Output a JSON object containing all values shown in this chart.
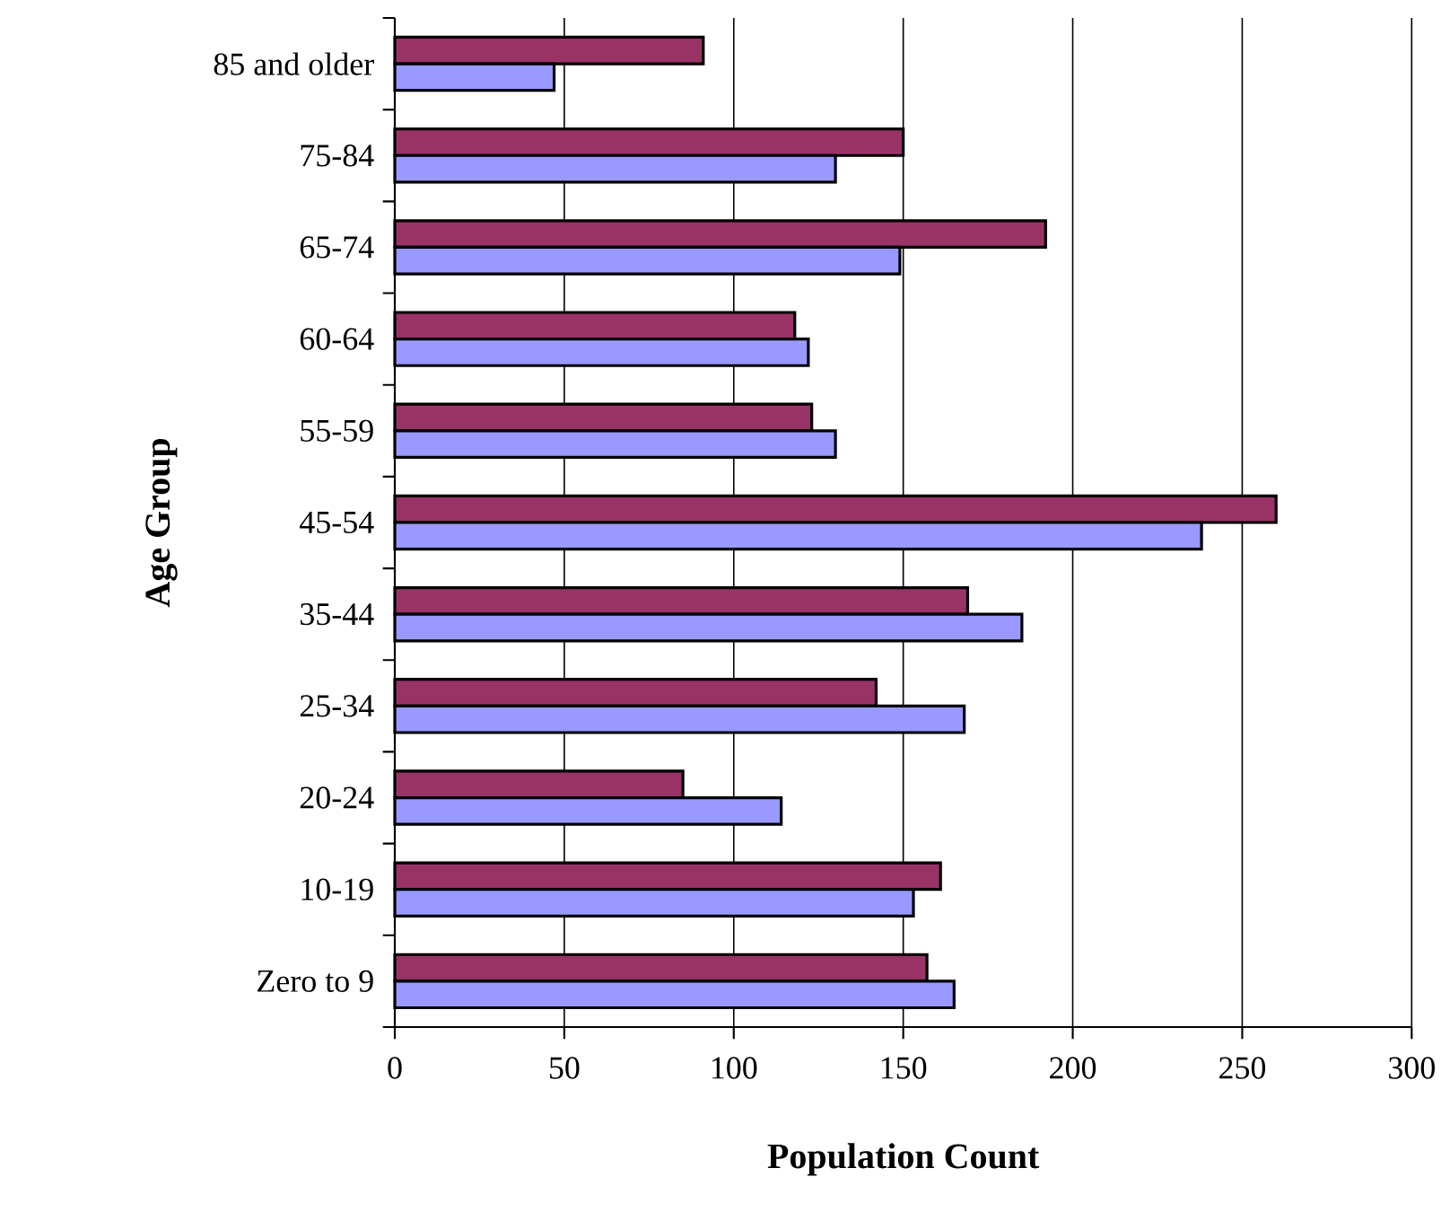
{
  "chart_data": {
    "type": "bar",
    "orientation": "horizontal",
    "xlabel": "Population Count",
    "ylabel": "Age Group",
    "categories": [
      "85 and older",
      "75-84",
      "65-74",
      "60-64",
      "55-59",
      "45-54",
      "35-44",
      "25-34",
      "20-24",
      "10-19",
      "Zero to 9"
    ],
    "series": [
      {
        "color": "#993366",
        "values": [
          91,
          150,
          192,
          118,
          123,
          260,
          169,
          142,
          85,
          161,
          157
        ]
      },
      {
        "color": "#9999ff",
        "values": [
          47,
          130,
          149,
          122,
          130,
          238,
          185,
          168,
          114,
          153,
          165
        ]
      }
    ],
    "xlim": [
      0,
      300
    ],
    "xticks": [
      0,
      50,
      100,
      150,
      200,
      250,
      300
    ],
    "grid": "x"
  }
}
